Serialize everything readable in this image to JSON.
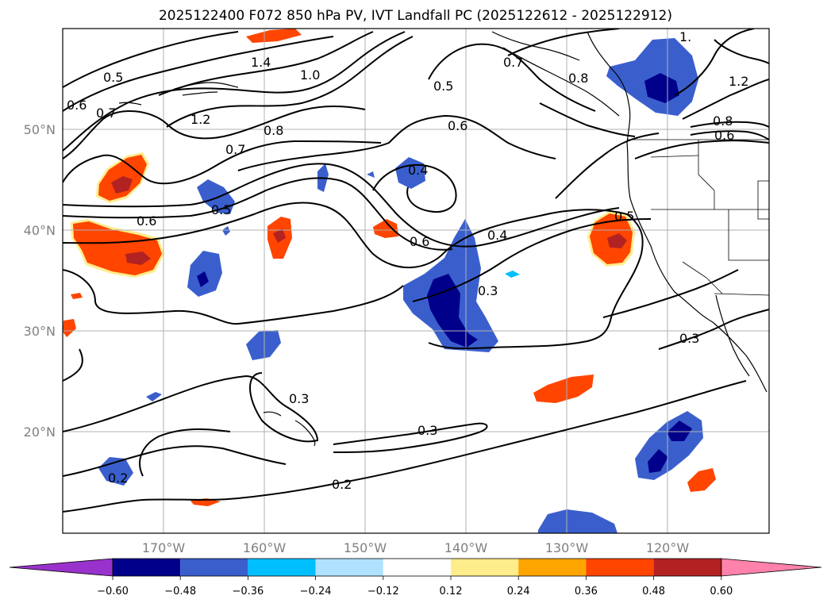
{
  "title": "2025122400 F072 850 hPa PV, IVT Landfall PC (2025122612 - 2025122912)",
  "lat_ticks": [
    "50°N",
    "40°N",
    "30°N",
    "20°N"
  ],
  "lon_ticks": [
    "170°W",
    "160°W",
    "150°W",
    "140°W",
    "130°W",
    "120°W"
  ],
  "contour_labels": [
    "0.5",
    "0.6",
    "0.7",
    "1.4",
    "1.2",
    "1.0",
    "0.8",
    "0.7",
    "0.6",
    "0.5",
    "0.4",
    "0.6",
    "0.6",
    "0.4",
    "0.3",
    "0.5",
    "0.3",
    "0.3",
    "0.3",
    "0.2",
    "0.2",
    "0.7",
    "0.8",
    "0.8",
    "1.2",
    "0.6",
    "1."
  ],
  "colorbar": {
    "colors": [
      "#9932CC",
      "#00008B",
      "#3A5FCD",
      "#00BFFF",
      "#B0E2FF",
      "#FFFFFF",
      "#FFEC8B",
      "#FFA500",
      "#FF4500",
      "#B22222",
      "#FF82AB"
    ],
    "tick_labels": [
      "−0.60",
      "−0.48",
      "−0.36",
      "−0.24",
      "−0.12",
      "0.12",
      "0.24",
      "0.36",
      "0.48",
      "0.60"
    ]
  }
}
